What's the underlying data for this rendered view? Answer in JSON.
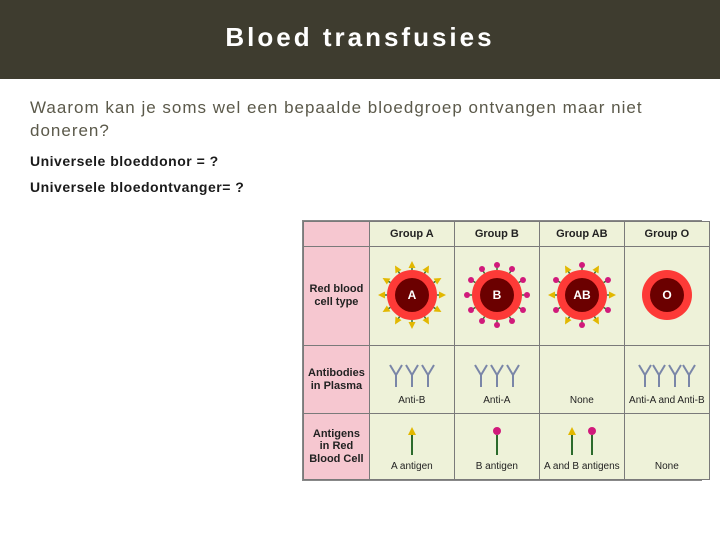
{
  "title": "Bloed transfusies",
  "question": "Waarom kan je soms wel een bepaalde bloedgroep ontvangen maar niet doneren?",
  "subline1": "Universele bloeddonor = ?",
  "subline2": "Universele bloedontvanger= ?",
  "chart": {
    "type": "table-diagram",
    "background_color": "#eef2d9",
    "border_color": "#7a7a7a",
    "rowlabel_bg": "#f6c7d0",
    "columns": [
      "Group A",
      "Group B",
      "Group AB",
      "Group O"
    ],
    "row_headers": [
      "Red blood cell type",
      "Antibodies in Plasma",
      "Antigens in Red Blood Cell"
    ],
    "rbc": {
      "glow_color": "#ff1a1a",
      "cell_color": "#6b0000",
      "text_color": "#ffffff",
      "antigen_triangle_color": "#e2b800",
      "antigen_ball_color": "#d11a7b",
      "labels": [
        "A",
        "B",
        "AB",
        "O"
      ],
      "antigen_pattern": [
        "triangle",
        "ball",
        "both",
        "none"
      ]
    },
    "antibodies": {
      "labels": [
        "Anti-B",
        "Anti-A",
        "None",
        "Anti-A and Anti-B"
      ],
      "presence": [
        "B",
        "A",
        "none",
        "both"
      ],
      "colorA": "#7a86a8",
      "colorB": "#7a86a8"
    },
    "antigens_row": {
      "labels": [
        "A antigen",
        "B antigen",
        "A and B antigens",
        "None"
      ],
      "presence": [
        "A",
        "B",
        "both",
        "none"
      ],
      "stick_color": "#2c6b2c",
      "triangle_color": "#e2b800",
      "ball_color": "#d11a7b"
    }
  },
  "colors": {
    "title_band_bg": "#3e3c2f",
    "title_text": "#ffffff",
    "question_text": "#5b594a"
  }
}
